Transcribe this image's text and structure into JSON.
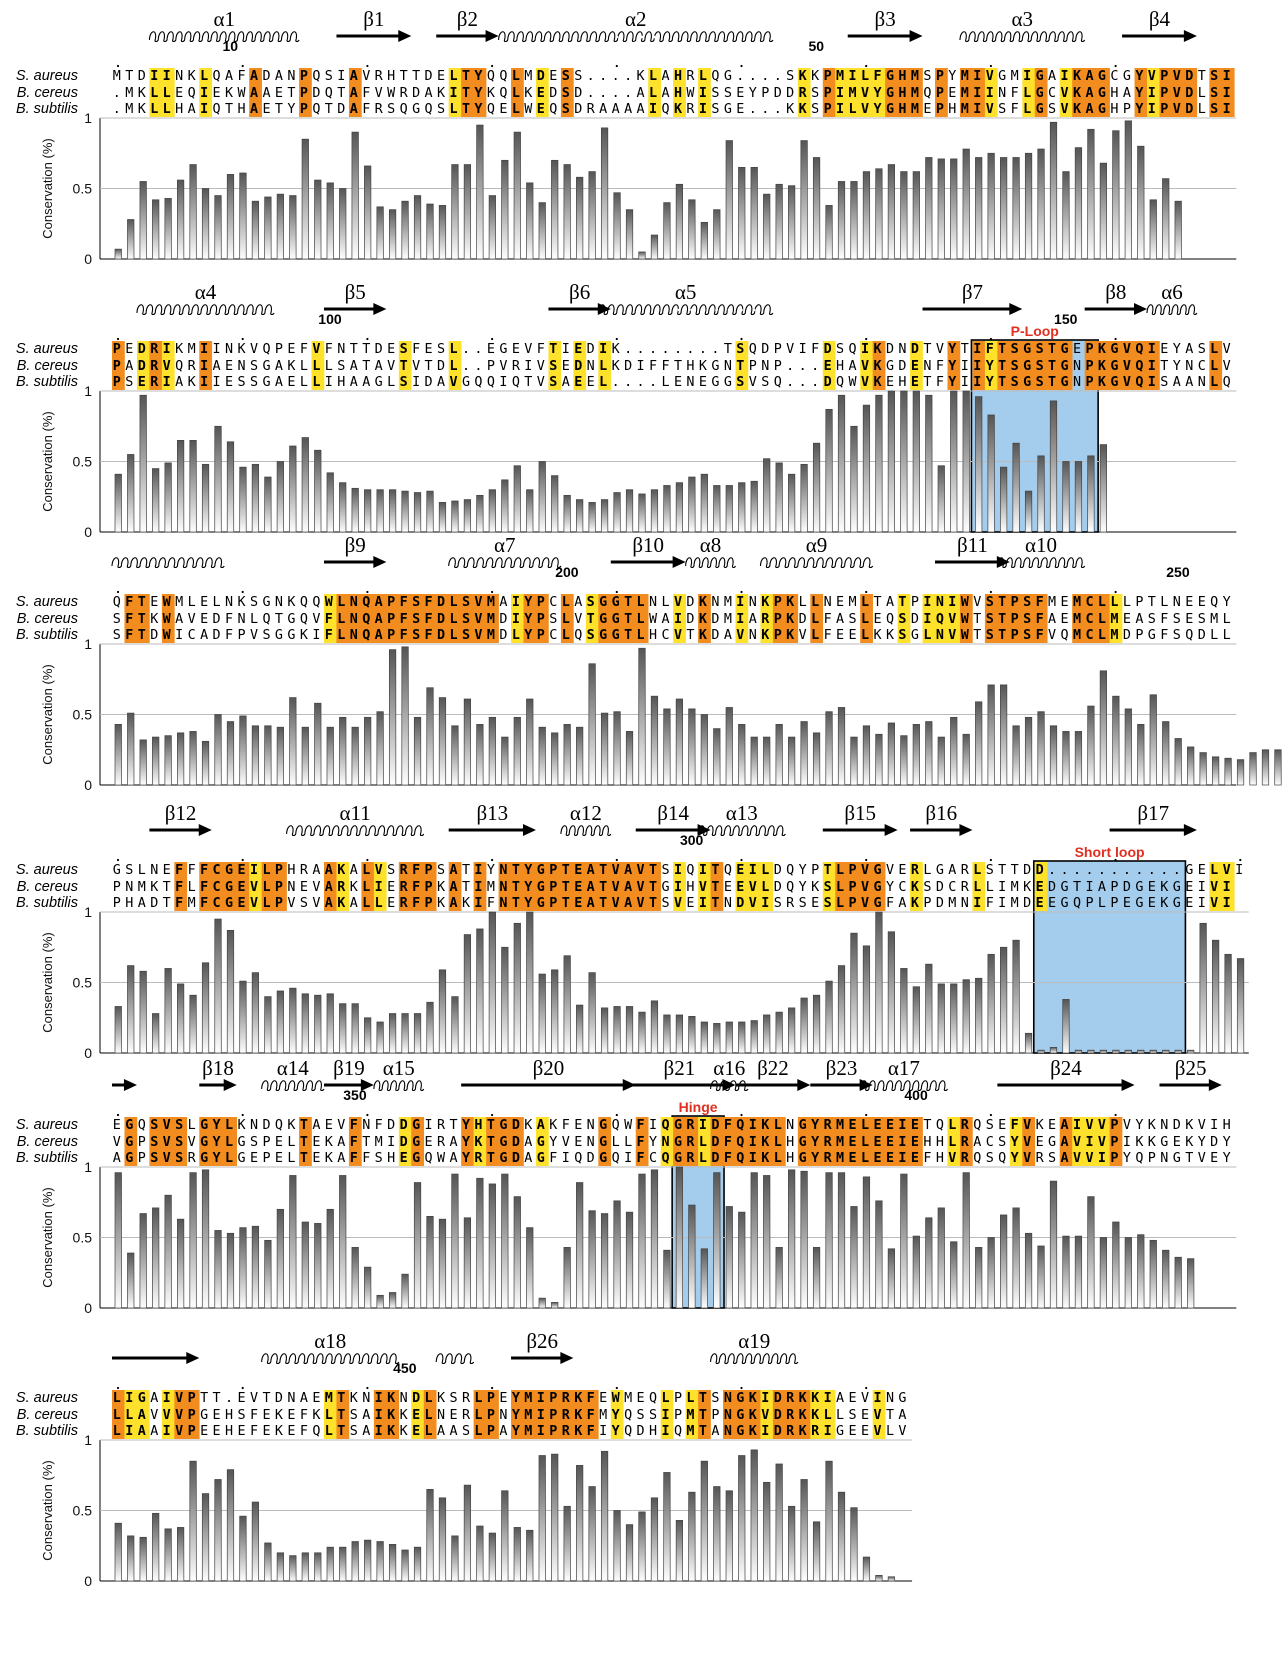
{
  "species": [
    "S. aureus",
    "B. cereus",
    "B. subtilis"
  ],
  "axis": {
    "ylabel": "Conservation (%)",
    "ticks": [
      "1",
      "0.5",
      "0"
    ]
  },
  "colors": {
    "identical": "#f28c1e",
    "similar": "#fde12a",
    "bar": "#555555",
    "box": "#5aa2dc",
    "label": "#e03020"
  },
  "blocks": [
    {
      "seqs": [
        "MTDIINKLQAFADANPQSIAVRHTTDELTYQQLMDESS....KLAHRLQG....SKKPMILFGHMSPYMIVGMIGAIKAGCGYVPVDTSI",
        ".MKLLEQIEKWAAETPDQTAFVWRDAKITYKQLKEDSD....ALAHWISSEYPDDRSPIMVYGHMQPEMIINFLGCVKAGHAYIPVDLSI",
        ".MKLLHAIQTHAETYPQTDAFRSQGQSLTYQELWEQSDRAAAAIQKRISGE...KKSPILVYGHMEPHMIVSFLGSVKAGHPYIPVDLSI"
      ],
      "numbers": [
        {
          "label": "10",
          "col": 9
        },
        {
          "label": "50",
          "col": 56
        }
      ],
      "sse": [
        {
          "type": "helix",
          "label": "α1",
          "start": 3,
          "end": 14
        },
        {
          "type": "strand",
          "label": "β1",
          "start": 18,
          "end": 23
        },
        {
          "type": "strand",
          "label": "β2",
          "start": 26,
          "end": 30
        },
        {
          "type": "helix",
          "label": "α2",
          "start": 31,
          "end": 52,
          "dotted_from": 40,
          "dotted_to": 44
        },
        {
          "type": "strand",
          "label": "β3",
          "start": 59,
          "end": 64
        },
        {
          "type": "helix",
          "label": "α3",
          "start": 68,
          "end": 77
        },
        {
          "type": "strand",
          "label": "β4",
          "start": 81,
          "end": 86
        }
      ],
      "conservation": [
        0.07,
        0.28,
        0.55,
        0.42,
        0.43,
        0.56,
        0.67,
        0.5,
        0.45,
        0.6,
        0.61,
        0.41,
        0.44,
        0.46,
        0.45,
        0.85,
        0.56,
        0.54,
        0.5,
        0.9,
        0.66,
        0.37,
        0.35,
        0.41,
        0.45,
        0.39,
        0.38,
        0.67,
        0.67,
        0.95,
        0.45,
        0.7,
        0.9,
        0.54,
        0.4,
        0.7,
        0.67,
        0.58,
        0.62,
        0.93,
        0.47,
        0.35,
        0.05,
        0.17,
        0.4,
        0.53,
        0.42,
        0.26,
        0.35,
        0.84,
        0.65,
        0.65,
        0.46,
        0.53,
        0.52,
        0.84,
        0.72,
        0.38,
        0.55,
        0.55,
        0.62,
        0.64,
        0.67,
        0.62,
        0.62,
        0.72,
        0.71,
        0.71,
        0.78,
        0.72,
        0.75,
        0.72,
        0.72,
        0.75,
        0.78,
        0.97,
        0.62,
        0.79,
        0.92,
        0.68,
        0.91,
        0.98,
        0.8,
        0.42,
        0.57,
        0.41
      ],
      "box": null
    },
    {
      "seqs": [
        "PEDRIKMIINKVQPEFVFNTTDESFESL..EGEVFTIEDIK........TSQDPVIFDSQIKDNDTVYTIFTSGSTGEPKGVQIEYASLV",
        "PADRVQRIAENSGAKLLLSATAVTVTDL..PVRIVSEDNLKDIFFTHKGNTPNP...EHAVKGDENFYIIYTSGSTGNPKGVQITYNCLV",
        "PSERIAKIIESSGAELLIHAAGLSIDAVGQQIQTVSAEEL....LENEGGSVSQ...DQWVKEHETFYIIYTSGSTGNPKGVQISAANLQ"
      ],
      "numbers": [
        {
          "label": "100",
          "col": 17
        },
        {
          "label": "150",
          "col": 76
        }
      ],
      "sse": [
        {
          "type": "helix",
          "label": "α4",
          "start": 2,
          "end": 12
        },
        {
          "type": "strand",
          "label": "β5",
          "start": 17,
          "end": 21
        },
        {
          "type": "strand",
          "label": "β6",
          "start": 35,
          "end": 39
        },
        {
          "type": "helix",
          "label": "α5",
          "start": 39,
          "end": 52,
          "dotted_from": 44,
          "dotted_to": 51
        },
        {
          "type": "strand",
          "label": "β7",
          "start": 65,
          "end": 72
        },
        {
          "type": "strand",
          "label": "β8",
          "start": 78,
          "end": 82
        },
        {
          "type": "helix",
          "label": "α6",
          "start": 83,
          "end": 86
        }
      ],
      "conservation": [
        0.41,
        0.55,
        0.97,
        0.45,
        0.49,
        0.65,
        0.65,
        0.48,
        0.75,
        0.64,
        0.46,
        0.48,
        0.39,
        0.5,
        0.61,
        0.67,
        0.58,
        0.42,
        0.35,
        0.31,
        0.3,
        0.3,
        0.3,
        0.29,
        0.28,
        0.29,
        0.21,
        0.22,
        0.23,
        0.26,
        0.3,
        0.37,
        0.47,
        0.3,
        0.5,
        0.4,
        0.26,
        0.23,
        0.21,
        0.23,
        0.28,
        0.3,
        0.27,
        0.3,
        0.33,
        0.35,
        0.39,
        0.41,
        0.33,
        0.33,
        0.35,
        0.36,
        0.52,
        0.49,
        0.41,
        0.48,
        0.63,
        0.87,
        0.97,
        0.75,
        0.9,
        0.97,
        1.0,
        1.0,
        1.0,
        0.97,
        0.47,
        1.0,
        1.0,
        0.96,
        0.83,
        0.46,
        0.63,
        0.29,
        0.54,
        0.93,
        0.5,
        0.5,
        0.54,
        0.62
      ],
      "box": {
        "label": "P-Loop",
        "start": 69,
        "end": 78
      }
    },
    {
      "seqs": [
        "QFTEWMLELNKSGNKQQWLNQAPFSFDLSVMAIYPCLASGGTLNLVDKNMINKPKLLNEMLTATPINIWVSTPSFMEMCLLLPTLNEEQY",
        "SFTKWAVEDFNLQTGQVFLNQAPFSFDLSVMDIYPSLVTGGTLWAIDKDMIARPKDLFASLEQSDIQVWTSTPSFAEMCLMEASFSESML",
        "SFTDWICADFPVSGGKIFLNQAPFSFDLSVMDLYPCLQSGGTLHCVTKDAVNKPKVLFEELKKSGLNVWTSTPSFVQMCLMDPGFSQDLL"
      ],
      "numbers": [
        {
          "label": "200",
          "col": 36
        },
        {
          "label": "250",
          "col": 85
        }
      ],
      "sse": [
        {
          "type": "helix",
          "label": "",
          "start": 0,
          "end": 8
        },
        {
          "type": "strand",
          "label": "β9",
          "start": 17,
          "end": 21
        },
        {
          "type": "helix",
          "label": "α7",
          "start": 27,
          "end": 35
        },
        {
          "type": "strand",
          "label": "β10",
          "start": 40,
          "end": 45
        },
        {
          "type": "helix",
          "label": "α8",
          "start": 46,
          "end": 49
        },
        {
          "type": "helix",
          "label": "α9",
          "start": 52,
          "end": 60
        },
        {
          "type": "strand",
          "label": "β11",
          "start": 66,
          "end": 71
        },
        {
          "type": "helix",
          "label": "α10",
          "start": 71,
          "end": 77
        }
      ],
      "conservation": [
        0.43,
        0.51,
        0.32,
        0.34,
        0.35,
        0.37,
        0.38,
        0.31,
        0.5,
        0.45,
        0.49,
        0.42,
        0.42,
        0.41,
        0.62,
        0.41,
        0.58,
        0.41,
        0.48,
        0.41,
        0.48,
        0.52,
        0.96,
        0.98,
        0.48,
        0.69,
        0.62,
        0.42,
        0.61,
        0.43,
        0.48,
        0.34,
        0.48,
        0.61,
        0.41,
        0.37,
        0.43,
        0.41,
        0.86,
        0.51,
        0.52,
        0.38,
        0.97,
        0.63,
        0.54,
        0.61,
        0.54,
        0.5,
        0.4,
        0.55,
        0.43,
        0.34,
        0.34,
        0.43,
        0.34,
        0.45,
        0.37,
        0.52,
        0.55,
        0.34,
        0.42,
        0.36,
        0.44,
        0.35,
        0.43,
        0.45,
        0.34,
        0.48,
        0.36,
        0.59,
        0.71,
        0.71,
        0.42,
        0.48,
        0.52,
        0.42,
        0.38,
        0.38,
        0.56,
        0.81,
        0.63,
        0.54,
        0.43,
        0.64,
        0.45,
        0.33,
        0.27,
        0.23,
        0.2,
        0.19,
        0.18,
        0.23,
        0.25,
        0.25,
        0.26,
        0.25,
        0.28,
        0.27
      ],
      "box": null
    },
    {
      "seqs": [
        "GSLNEFFFCGEILPHRAAKALVSRFPSATIYNTYGPTEATVAVTSIQITQEILDQYPTLPVGVERLGARLSTTDD...........GELVI",
        "PNMKTFLFCGEVLPNEVARKLIERFPKATIMNTYGPTEATVAVTGIHVTEEVLDQYKSLPVGYCKSDCRLLIMKEDGTIAPDGEKGEIVI",
        "PHADTFMFCGEVLPVSVAKALLERFPKAKIFNTYGPTEATVAVTSVEITNDVISRSESLPVGFAKPDMNIFIMDEEGQPLPEGEKGEIVI"
      ],
      "numbers": [
        {
          "label": "300",
          "col": 46
        }
      ],
      "sse": [
        {
          "type": "strand",
          "label": "β12",
          "start": 3,
          "end": 7
        },
        {
          "type": "helix",
          "label": "α11",
          "start": 14,
          "end": 24
        },
        {
          "type": "strand",
          "label": "β13",
          "start": 27,
          "end": 33
        },
        {
          "type": "helix",
          "label": "α12",
          "start": 36,
          "end": 39
        },
        {
          "type": "strand",
          "label": "β14",
          "start": 42,
          "end": 47
        },
        {
          "type": "helix",
          "label": "α13",
          "start": 47,
          "end": 53
        },
        {
          "type": "strand",
          "label": "β15",
          "start": 57,
          "end": 62
        },
        {
          "type": "strand",
          "label": "β16",
          "start": 64,
          "end": 68
        },
        {
          "type": "strand",
          "label": "β17",
          "start": 80,
          "end": 86
        }
      ],
      "conservation": [
        0.33,
        0.62,
        0.58,
        0.28,
        0.6,
        0.49,
        0.41,
        0.64,
        0.95,
        0.87,
        0.51,
        0.57,
        0.4,
        0.44,
        0.46,
        0.42,
        0.41,
        0.42,
        0.35,
        0.35,
        0.25,
        0.22,
        0.28,
        0.28,
        0.28,
        0.36,
        0.59,
        0.4,
        0.84,
        0.88,
        1.0,
        0.75,
        0.92,
        1.0,
        0.56,
        0.59,
        0.69,
        0.34,
        0.57,
        0.32,
        0.33,
        0.33,
        0.29,
        0.37,
        0.27,
        0.27,
        0.26,
        0.22,
        0.21,
        0.22,
        0.22,
        0.23,
        0.27,
        0.29,
        0.32,
        0.39,
        0.41,
        0.51,
        0.62,
        0.85,
        0.76,
        1.0,
        0.86,
        0.6,
        0.47,
        0.63,
        0.49,
        0.49,
        0.52,
        0.53,
        0.7,
        0.75,
        0.8,
        0.14,
        0.02,
        0.04,
        0.38,
        0.02,
        0.02,
        0.02,
        0.02,
        0.02,
        0.02,
        0.02,
        0.02,
        0.02,
        0.02,
        0.92,
        0.8,
        0.7,
        0.67
      ],
      "box": {
        "label": "Short loop",
        "start": 74,
        "end": 85
      }
    },
    {
      "seqs": [
        "EGQSVSLGYLKNDQKTAEVFNFDDGIRTYHTGDKAKFENGQWFIQGRIDFQIKLNGYRMELEEIETQLRQSEFVKEAIVVPVYKNDKVIH",
        "VGPSVSVGYLGSPELTEKAFTMIDGERAYKTGDAGYVENGLLFYNGRLDFQIKLHGYRMELEEIEHHLRACSYVEGAVIVPIKKGEKYDY",
        "AGPSVSRGYLGEPELTEKAFFSHEGQWAYRTGDAGFIQDGQIFCQGRLDFQIKLHGYRMELEEIEFHVRQSQYVRSAVVIPYQPNGTVEY"
      ],
      "numbers": [
        {
          "label": "350",
          "col": 19
        },
        {
          "label": "400",
          "col": 64
        }
      ],
      "sse": [
        {
          "type": "strand",
          "label": "",
          "start": 0,
          "end": 1
        },
        {
          "type": "strand",
          "label": "β18",
          "start": 7,
          "end": 9
        },
        {
          "type": "helix",
          "label": "α14",
          "start": 12,
          "end": 16
        },
        {
          "type": "strand",
          "label": "β19",
          "start": 17,
          "end": 20
        },
        {
          "type": "helix",
          "label": "α15",
          "start": 21,
          "end": 24
        },
        {
          "type": "strand",
          "label": "β20",
          "start": 28,
          "end": 41
        },
        {
          "type": "strand",
          "label": "β21",
          "start": 41,
          "end": 49
        },
        {
          "type": "helix",
          "label": "α16",
          "start": 48,
          "end": 50
        },
        {
          "type": "strand",
          "label": "β22",
          "start": 50,
          "end": 55
        },
        {
          "type": "strand",
          "label": "β23",
          "start": 56,
          "end": 60
        },
        {
          "type": "helix",
          "label": "α17",
          "start": 60,
          "end": 66
        },
        {
          "type": "strand",
          "label": "β24",
          "start": 71,
          "end": 81
        },
        {
          "type": "strand",
          "label": "β25",
          "start": 84,
          "end": 88
        }
      ],
      "conservation": [
        0.96,
        0.39,
        0.67,
        0.71,
        0.8,
        0.63,
        0.96,
        0.98,
        0.55,
        0.53,
        0.57,
        0.58,
        0.48,
        0.7,
        0.94,
        0.61,
        0.6,
        0.7,
        0.94,
        0.43,
        0.29,
        0.09,
        0.11,
        0.24,
        0.89,
        0.65,
        0.63,
        0.95,
        0.64,
        0.92,
        0.88,
        0.95,
        0.79,
        0.57,
        0.07,
        0.04,
        0.43,
        0.89,
        0.69,
        0.67,
        0.76,
        0.68,
        0.95,
        0.98,
        0.41,
        1.0,
        0.73,
        0.42,
        0.96,
        0.72,
        0.68,
        0.96,
        0.94,
        0.43,
        0.98,
        0.97,
        0.43,
        0.96,
        0.96,
        0.72,
        0.93,
        0.76,
        0.42,
        0.95,
        0.51,
        0.64,
        0.71,
        0.47,
        0.96,
        0.43,
        0.5,
        0.66,
        0.71,
        0.53,
        0.44,
        0.9,
        0.51,
        0.51,
        0.79,
        0.5,
        0.61,
        0.5,
        0.52,
        0.48,
        0.41,
        0.36,
        0.35
      ],
      "box": {
        "label": "Hinge",
        "start": 45,
        "end": 48
      }
    },
    {
      "seqs": [
        "LIGAIVPTT.EVTDNAEMTKNIKNDLKSRLPEYMIPRKFEWMEQLPLTSNGKIDRKKIAEVING",
        "LLAVVVPGEHSFEKEFKLTSAIKKELNERLPNYMIPRKFMYQSSIPMTPNGKVDRKKLLSEVTA",
        "LIAAIVPEEHEFEKEFQLTSAIKKELAASLPAYMIPRKFIYQDHIQMTANGKIDRKRIGEEVLV"
      ],
      "numbers": [
        {
          "label": "450",
          "col": 23
        }
      ],
      "sse": [
        {
          "type": "strand",
          "label": "",
          "start": 0,
          "end": 6
        },
        {
          "type": "helix",
          "label": "α18",
          "start": 12,
          "end": 22
        },
        {
          "type": "helix",
          "label": "",
          "start": 26,
          "end": 28
        },
        {
          "type": "strand",
          "label": "β26",
          "start": 32,
          "end": 36
        },
        {
          "type": "helix",
          "label": "α19",
          "start": 48,
          "end": 54
        }
      ],
      "conservation": [
        0.41,
        0.32,
        0.31,
        0.48,
        0.37,
        0.38,
        0.85,
        0.62,
        0.72,
        0.79,
        0.46,
        0.56,
        0.27,
        0.2,
        0.18,
        0.2,
        0.2,
        0.24,
        0.24,
        0.28,
        0.29,
        0.28,
        0.26,
        0.22,
        0.24,
        0.65,
        0.59,
        0.32,
        0.68,
        0.39,
        0.34,
        0.64,
        0.38,
        0.36,
        0.89,
        0.9,
        0.53,
        0.82,
        0.67,
        0.92,
        0.5,
        0.4,
        0.49,
        0.59,
        0.77,
        0.43,
        0.63,
        0.85,
        0.67,
        0.64,
        0.89,
        0.93,
        0.7,
        0.83,
        0.53,
        0.72,
        0.42,
        0.85,
        0.63,
        0.52,
        0.17,
        0.04,
        0.03
      ],
      "box": null
    }
  ]
}
